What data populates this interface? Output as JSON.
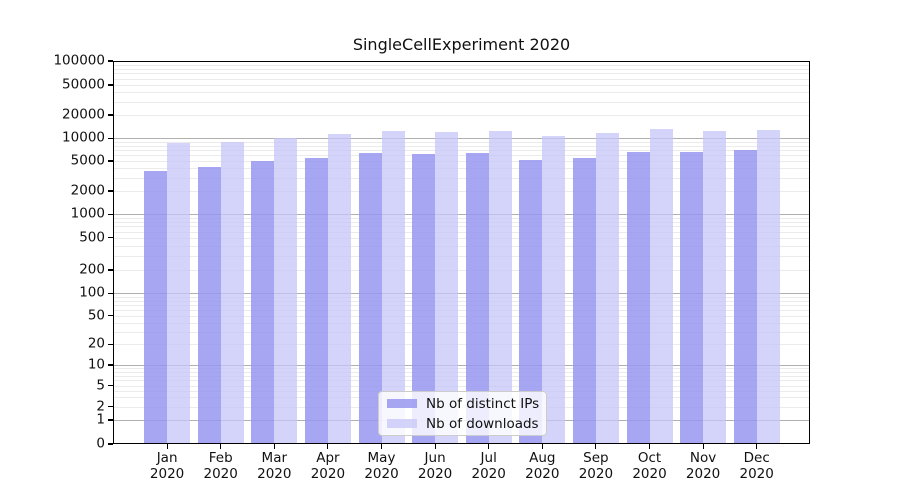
{
  "chart_data": {
    "type": "bar",
    "title": "SingleCellExperiment 2020",
    "categories": [
      "Jan 2020",
      "Feb 2020",
      "Mar 2020",
      "Apr 2020",
      "May 2020",
      "Jun 2020",
      "Jul 2020",
      "Aug 2020",
      "Sep 2020",
      "Oct 2020",
      "Nov 2020",
      "Dec 2020"
    ],
    "series": [
      {
        "name": "Nb of distinct IPs",
        "color": "rgba(150,150,240,0.85)",
        "values": [
          3700,
          4100,
          5000,
          5400,
          6300,
          6200,
          6300,
          5200,
          5500,
          6600,
          6600,
          7000
        ]
      },
      {
        "name": "Nb of downloads",
        "color": "rgba(198,198,248,0.75)",
        "values": [
          8600,
          9000,
          10100,
          11200,
          12600,
          11900,
          12300,
          10700,
          11600,
          13100,
          12500,
          12800
        ]
      }
    ],
    "yticks": [
      0,
      1,
      2,
      5,
      10,
      20,
      50,
      100,
      200,
      500,
      1000,
      2000,
      5000,
      10000,
      20000,
      50000,
      100000
    ],
    "ylim": [
      0,
      100000
    ],
    "yscale": "symlog",
    "grid": true,
    "xlabel": "",
    "ylabel": "",
    "legend_position": "lower center"
  }
}
